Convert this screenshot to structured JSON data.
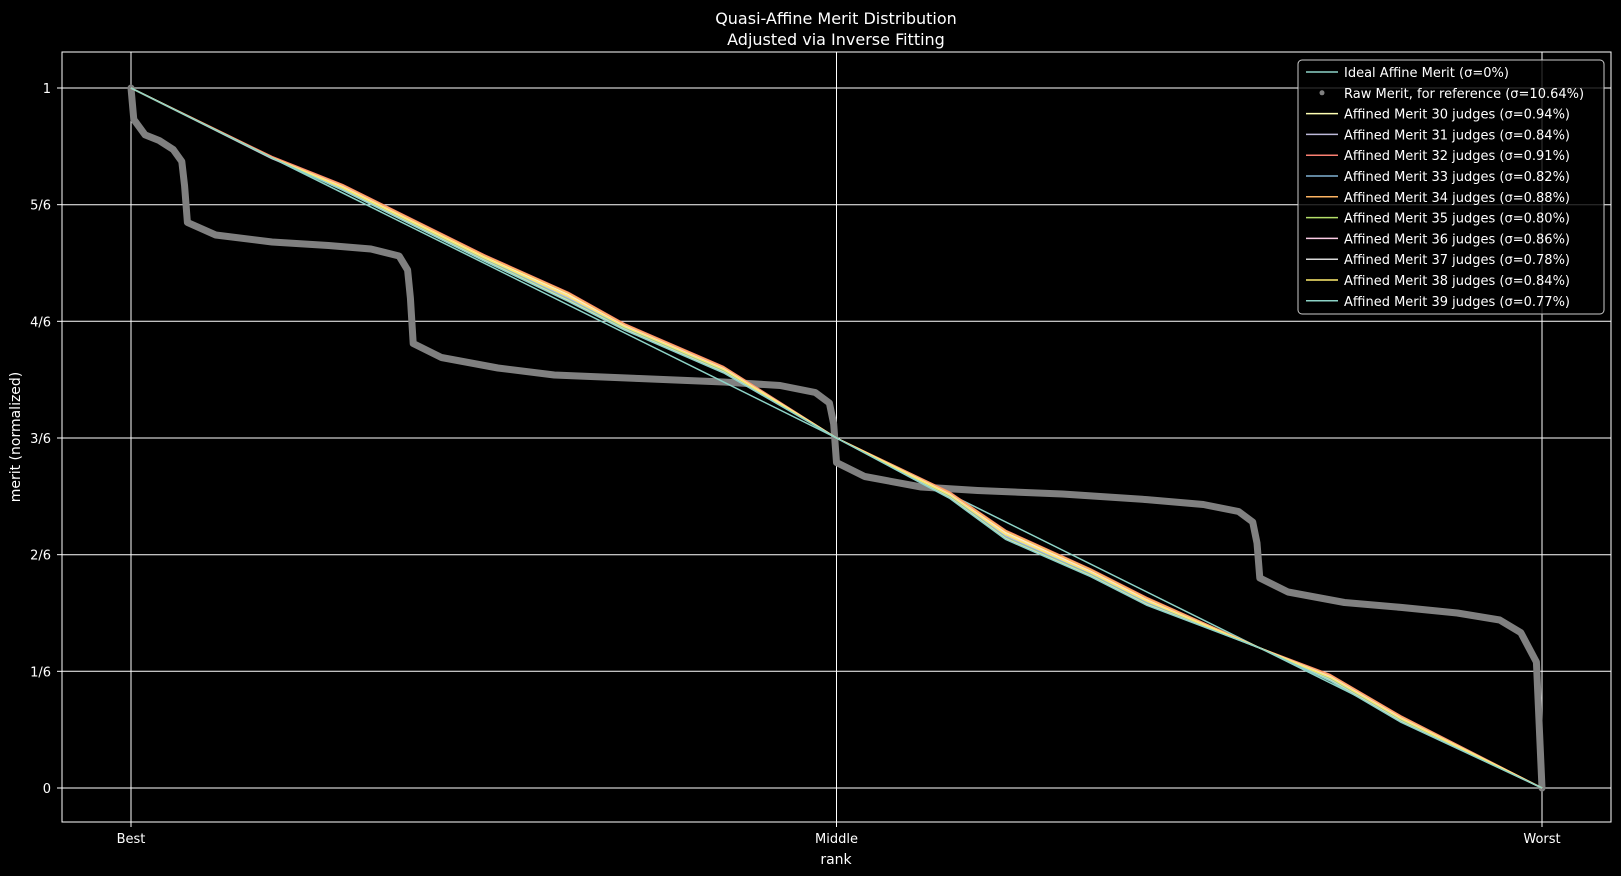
{
  "chart_data": {
    "type": "line",
    "title": "Quasi-Affine Merit Distribution",
    "subtitle": "Adjusted via Inverse Fitting",
    "xlabel": "rank",
    "ylabel": "merit (normalized)",
    "xlim": [
      0,
      1
    ],
    "ylim": [
      0,
      1
    ],
    "grid": true,
    "legend_position": "top-right",
    "x_ticks": [
      {
        "value": 0,
        "label": "Best"
      },
      {
        "value": 0.5,
        "label": "Middle"
      },
      {
        "value": 1,
        "label": "Worst"
      }
    ],
    "y_ticks": [
      {
        "value": 0,
        "label": "0"
      },
      {
        "value": 0.1667,
        "label": "1/6"
      },
      {
        "value": 0.3333,
        "label": "2/6"
      },
      {
        "value": 0.5,
        "label": "3/6"
      },
      {
        "value": 0.6667,
        "label": "4/6"
      },
      {
        "value": 0.8333,
        "label": "5/6"
      },
      {
        "value": 1,
        "label": "1"
      }
    ],
    "ideal": {
      "name": "Ideal Affine Merit (σ=0%)",
      "color": "#8dd3c7",
      "x": [
        0,
        1
      ],
      "y": [
        1,
        0
      ]
    },
    "raw": {
      "name": "Raw Merit, for reference (σ=10.64%)",
      "color": "#808080",
      "x": [
        0.0,
        0.002,
        0.01,
        0.02,
        0.03,
        0.036,
        0.038,
        0.04,
        0.06,
        0.1,
        0.14,
        0.17,
        0.19,
        0.196,
        0.198,
        0.2,
        0.22,
        0.26,
        0.3,
        0.36,
        0.42,
        0.46,
        0.485,
        0.495,
        0.498,
        0.5,
        0.52,
        0.56,
        0.6,
        0.66,
        0.72,
        0.76,
        0.785,
        0.795,
        0.798,
        0.8,
        0.82,
        0.86,
        0.9,
        0.94,
        0.97,
        0.985,
        0.996,
        1.0
      ],
      "y": [
        1.0,
        0.955,
        0.933,
        0.925,
        0.912,
        0.895,
        0.86,
        0.808,
        0.79,
        0.78,
        0.775,
        0.77,
        0.76,
        0.74,
        0.7,
        0.635,
        0.615,
        0.6,
        0.59,
        0.585,
        0.58,
        0.575,
        0.565,
        0.55,
        0.52,
        0.465,
        0.445,
        0.43,
        0.425,
        0.42,
        0.412,
        0.405,
        0.395,
        0.38,
        0.35,
        0.3,
        0.28,
        0.265,
        0.258,
        0.25,
        0.24,
        0.222,
        0.18,
        0.0
      ]
    },
    "series": [
      {
        "name": "Affined Merit 30 judges (σ=0.94%)",
        "color": "#ffffb3",
        "x": [
          0,
          0.1,
          0.15,
          0.25,
          0.31,
          0.35,
          0.42,
          0.5,
          0.58,
          0.62,
          0.68,
          0.72,
          0.8,
          0.85,
          0.9,
          1.0
        ],
        "y": [
          1.0,
          0.9,
          0.86,
          0.76,
          0.705,
          0.66,
          0.6,
          0.5,
          0.42,
          0.365,
          0.31,
          0.27,
          0.2,
          0.16,
          0.1,
          0.0
        ]
      },
      {
        "name": "Affined Merit 31 judges (σ=0.84%)",
        "color": "#bebada",
        "x": [
          0,
          0.1,
          0.15,
          0.25,
          0.31,
          0.35,
          0.42,
          0.5,
          0.58,
          0.62,
          0.68,
          0.72,
          0.8,
          0.85,
          0.9,
          1.0
        ],
        "y": [
          1.0,
          0.899,
          0.858,
          0.757,
          0.7,
          0.658,
          0.597,
          0.5,
          0.418,
          0.36,
          0.307,
          0.265,
          0.2,
          0.157,
          0.098,
          0.0
        ]
      },
      {
        "name": "Affined Merit 32 judges (σ=0.91%)",
        "color": "#fb8072",
        "x": [
          0,
          0.1,
          0.15,
          0.25,
          0.31,
          0.35,
          0.42,
          0.5,
          0.58,
          0.62,
          0.68,
          0.72,
          0.8,
          0.85,
          0.9,
          1.0
        ],
        "y": [
          1.0,
          0.902,
          0.862,
          0.762,
          0.708,
          0.663,
          0.602,
          0.5,
          0.423,
          0.368,
          0.313,
          0.272,
          0.2,
          0.162,
          0.103,
          0.0
        ]
      },
      {
        "name": "Affined Merit 33 judges (σ=0.82%)",
        "color": "#80b1d3",
        "x": [
          0,
          0.1,
          0.15,
          0.25,
          0.31,
          0.35,
          0.42,
          0.5,
          0.58,
          0.62,
          0.68,
          0.72,
          0.8,
          0.85,
          0.9,
          1.0
        ],
        "y": [
          1.0,
          0.9,
          0.857,
          0.756,
          0.698,
          0.657,
          0.596,
          0.5,
          0.417,
          0.358,
          0.305,
          0.264,
          0.2,
          0.156,
          0.097,
          0.0
        ]
      },
      {
        "name": "Affined Merit 34 judges (σ=0.88%)",
        "color": "#fdb462",
        "x": [
          0,
          0.1,
          0.15,
          0.25,
          0.31,
          0.35,
          0.42,
          0.5,
          0.58,
          0.62,
          0.68,
          0.72,
          0.8,
          0.85,
          0.9,
          1.0
        ],
        "y": [
          1.0,
          0.901,
          0.861,
          0.761,
          0.707,
          0.662,
          0.601,
          0.5,
          0.422,
          0.367,
          0.312,
          0.271,
          0.2,
          0.161,
          0.102,
          0.0
        ]
      },
      {
        "name": "Affined Merit 35 judges (σ=0.80%)",
        "color": "#b3de69",
        "x": [
          0,
          0.1,
          0.15,
          0.25,
          0.31,
          0.35,
          0.42,
          0.5,
          0.58,
          0.62,
          0.68,
          0.72,
          0.8,
          0.85,
          0.9,
          1.0
        ],
        "y": [
          1.0,
          0.9,
          0.856,
          0.755,
          0.697,
          0.656,
          0.595,
          0.5,
          0.416,
          0.357,
          0.304,
          0.263,
          0.2,
          0.155,
          0.096,
          0.0
        ]
      },
      {
        "name": "Affined Merit 36 judges (σ=0.86%)",
        "color": "#fccde5",
        "x": [
          0,
          0.1,
          0.15,
          0.25,
          0.31,
          0.35,
          0.42,
          0.5,
          0.58,
          0.62,
          0.68,
          0.72,
          0.8,
          0.85,
          0.9,
          1.0
        ],
        "y": [
          1.0,
          0.9,
          0.859,
          0.758,
          0.703,
          0.66,
          0.599,
          0.5,
          0.42,
          0.363,
          0.309,
          0.268,
          0.2,
          0.159,
          0.1,
          0.0
        ]
      },
      {
        "name": "Affined Merit 37 judges (σ=0.78%)",
        "color": "#d9d9d9",
        "x": [
          0,
          0.1,
          0.15,
          0.25,
          0.31,
          0.35,
          0.42,
          0.5,
          0.58,
          0.62,
          0.68,
          0.72,
          0.8,
          0.85,
          0.9,
          1.0
        ],
        "y": [
          1.0,
          0.9,
          0.855,
          0.754,
          0.696,
          0.655,
          0.594,
          0.5,
          0.415,
          0.356,
          0.303,
          0.262,
          0.2,
          0.154,
          0.095,
          0.0
        ]
      },
      {
        "name": "Affined Merit 38 judges (σ=0.84%)",
        "color": "#ffed6f",
        "x": [
          0,
          0.1,
          0.15,
          0.25,
          0.31,
          0.35,
          0.42,
          0.5,
          0.58,
          0.62,
          0.68,
          0.72,
          0.8,
          0.85,
          0.9,
          1.0
        ],
        "y": [
          1.0,
          0.9,
          0.858,
          0.758,
          0.702,
          0.659,
          0.598,
          0.5,
          0.419,
          0.362,
          0.308,
          0.267,
          0.2,
          0.158,
          0.099,
          0.0
        ]
      },
      {
        "name": "Affined Merit 39 judges (σ=0.77%)",
        "color": "#8dd3c7",
        "x": [
          0,
          0.1,
          0.15,
          0.25,
          0.31,
          0.35,
          0.42,
          0.5,
          0.58,
          0.62,
          0.68,
          0.72,
          0.8,
          0.85,
          0.9,
          1.0
        ],
        "y": [
          1.0,
          0.9,
          0.854,
          0.753,
          0.695,
          0.654,
          0.593,
          0.5,
          0.414,
          0.355,
          0.302,
          0.261,
          0.2,
          0.153,
          0.094,
          0.0
        ]
      }
    ]
  }
}
